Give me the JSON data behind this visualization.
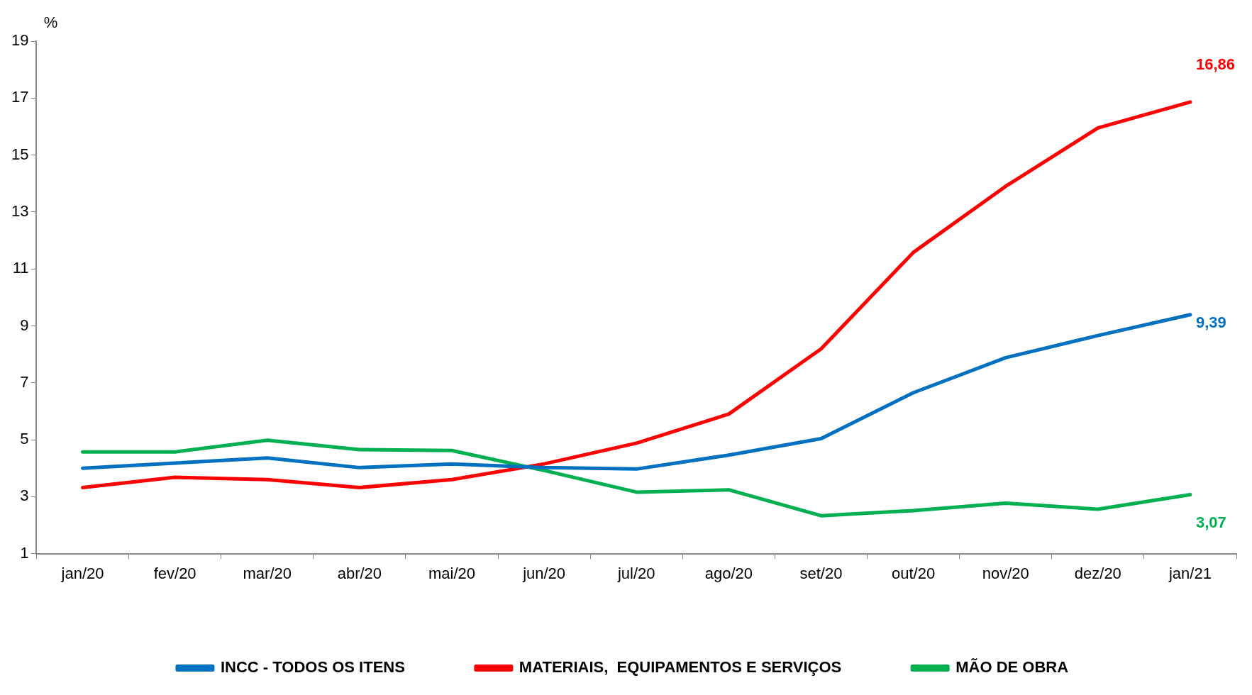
{
  "chart_data": {
    "type": "line",
    "ylabel": "%",
    "categories": [
      "jan/20",
      "fev/20",
      "mar/20",
      "abr/20",
      "mai/20",
      "jun/20",
      "jul/20",
      "ago/20",
      "set/20",
      "out/20",
      "nov/20",
      "dez/20",
      "jan/21"
    ],
    "ylim": [
      1,
      19
    ],
    "yticks": [
      1,
      3,
      5,
      7,
      9,
      11,
      13,
      15,
      17,
      19
    ],
    "grid": false,
    "legend": "bottom",
    "marker": "none",
    "series": [
      {
        "name": "INCC - TODOS OS ITENS",
        "color": "#0070c0",
        "values": [
          4.0,
          4.18,
          4.36,
          4.02,
          4.15,
          4.02,
          3.97,
          4.46,
          5.04,
          6.65,
          7.88,
          8.66,
          9.39
        ],
        "value_labels": [
          null,
          null,
          null,
          null,
          null,
          null,
          null,
          null,
          null,
          null,
          null,
          null,
          "9,39"
        ]
      },
      {
        "name": "MATERIAIS,  EQUIPAMENTOS E SERVIÇOS",
        "color": "#ff0000",
        "values": [
          3.32,
          3.68,
          3.6,
          3.32,
          3.6,
          4.15,
          4.88,
          5.9,
          8.19,
          11.58,
          13.9,
          15.95,
          16.86
        ],
        "value_labels": [
          null,
          null,
          null,
          null,
          null,
          null,
          null,
          null,
          null,
          null,
          null,
          null,
          "16,86"
        ]
      },
      {
        "name": "MÃO DE OBRA",
        "color": "#00b050",
        "values": [
          4.57,
          4.57,
          4.98,
          4.65,
          4.62,
          3.92,
          3.16,
          3.24,
          2.33,
          2.51,
          2.77,
          2.56,
          3.07
        ],
        "value_labels": [
          null,
          null,
          null,
          null,
          null,
          null,
          null,
          null,
          null,
          null,
          null,
          null,
          "3,07"
        ]
      }
    ]
  }
}
